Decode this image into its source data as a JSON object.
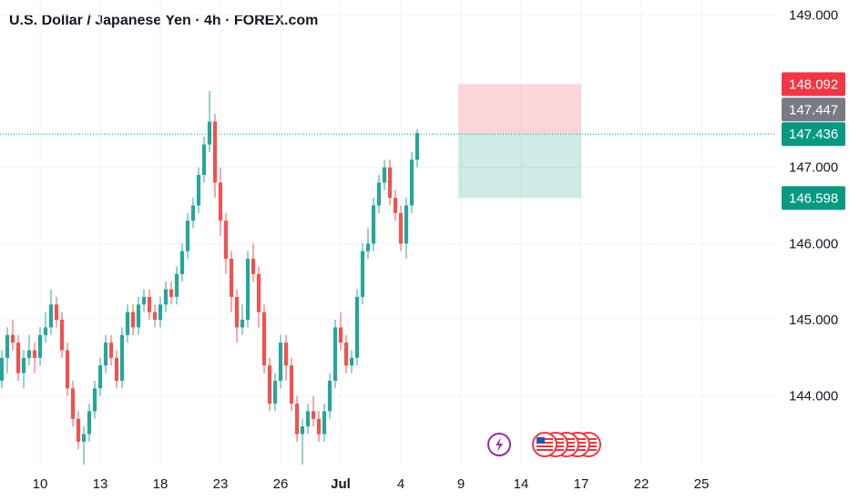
{
  "header": {
    "title": "U.S. Dollar / Japanese Yen · 4h · FOREX.com"
  },
  "chart_data": {
    "type": "candlestick",
    "title": "U.S. Dollar / Japanese Yen · 4h · FOREX.com",
    "ylim": [
      143.1,
      149.1
    ],
    "yticks": [
      144.0,
      145.0,
      146.0,
      147.0,
      149.0
    ],
    "ytick_labels": [
      "144.000",
      "145.000",
      "146.000",
      "147.000",
      "149.000"
    ],
    "xticks": [
      {
        "label": "10",
        "bar": 7
      },
      {
        "label": "13",
        "bar": 18
      },
      {
        "label": "18",
        "bar": 29
      },
      {
        "label": "23",
        "bar": 40
      },
      {
        "label": "26",
        "bar": 51
      },
      {
        "label": "Jul",
        "bar": 62
      },
      {
        "label": "4",
        "bar": 73
      },
      {
        "label": "9",
        "bar": 84
      },
      {
        "label": "14",
        "bar": 95
      },
      {
        "label": "17",
        "bar": 106
      },
      {
        "label": "22",
        "bar": 117
      },
      {
        "label": "25",
        "bar": 128
      }
    ],
    "grid": true,
    "colors": {
      "up": "#26a69a",
      "down": "#ef5350"
    },
    "candles": [
      [
        144.2,
        144.6,
        144.1,
        144.5
      ],
      [
        144.5,
        144.9,
        144.3,
        144.8
      ],
      [
        144.8,
        145.0,
        144.6,
        144.7
      ],
      [
        144.7,
        144.8,
        144.2,
        144.3
      ],
      [
        144.3,
        144.6,
        144.1,
        144.5
      ],
      [
        144.5,
        144.8,
        144.4,
        144.6
      ],
      [
        144.6,
        144.7,
        144.3,
        144.5
      ],
      [
        144.5,
        144.9,
        144.4,
        144.8
      ],
      [
        144.8,
        145.1,
        144.7,
        144.9
      ],
      [
        144.9,
        145.4,
        144.8,
        145.2
      ],
      [
        145.2,
        145.3,
        144.9,
        145.0
      ],
      [
        145.0,
        145.1,
        144.5,
        144.6
      ],
      [
        144.6,
        144.7,
        144.0,
        144.1
      ],
      [
        144.1,
        144.2,
        143.6,
        143.7
      ],
      [
        143.7,
        143.8,
        143.3,
        143.4
      ],
      [
        143.4,
        143.6,
        143.1,
        143.5
      ],
      [
        143.5,
        143.9,
        143.4,
        143.8
      ],
      [
        143.8,
        144.2,
        143.7,
        144.1
      ],
      [
        144.1,
        144.5,
        144.0,
        144.4
      ],
      [
        144.4,
        144.8,
        144.3,
        144.7
      ],
      [
        144.7,
        144.8,
        144.4,
        144.5
      ],
      [
        144.5,
        144.6,
        144.1,
        144.2
      ],
      [
        144.2,
        144.9,
        144.1,
        144.8
      ],
      [
        144.8,
        145.2,
        144.7,
        145.1
      ],
      [
        145.1,
        145.2,
        144.8,
        144.9
      ],
      [
        144.9,
        145.3,
        144.8,
        145.2
      ],
      [
        145.2,
        145.4,
        145.1,
        145.3
      ],
      [
        145.3,
        145.4,
        145.0,
        145.1
      ],
      [
        145.1,
        145.2,
        144.9,
        145.0
      ],
      [
        145.0,
        145.3,
        144.9,
        145.2
      ],
      [
        145.2,
        145.5,
        145.1,
        145.4
      ],
      [
        145.4,
        145.5,
        145.2,
        145.3
      ],
      [
        145.3,
        145.7,
        145.2,
        145.6
      ],
      [
        145.6,
        146.0,
        145.5,
        145.9
      ],
      [
        145.9,
        146.4,
        145.8,
        146.3
      ],
      [
        146.3,
        146.6,
        146.2,
        146.5
      ],
      [
        146.5,
        147.0,
        146.4,
        146.9
      ],
      [
        146.9,
        147.4,
        146.8,
        147.3
      ],
      [
        147.3,
        148.0,
        147.2,
        147.6
      ],
      [
        147.6,
        147.7,
        146.6,
        146.8
      ],
      [
        146.8,
        147.0,
        146.1,
        146.3
      ],
      [
        146.3,
        146.4,
        145.6,
        145.8
      ],
      [
        145.8,
        145.9,
        145.1,
        145.3
      ],
      [
        145.3,
        145.4,
        144.7,
        144.9
      ],
      [
        144.9,
        145.2,
        144.8,
        145.0
      ],
      [
        145.0,
        145.9,
        144.9,
        145.8
      ],
      [
        145.8,
        146.0,
        145.5,
        145.6
      ],
      [
        145.6,
        145.7,
        144.9,
        145.1
      ],
      [
        145.1,
        145.2,
        144.3,
        144.4
      ],
      [
        144.4,
        144.5,
        143.8,
        143.9
      ],
      [
        143.9,
        144.3,
        143.8,
        144.2
      ],
      [
        144.2,
        144.8,
        144.1,
        144.7
      ],
      [
        144.7,
        144.8,
        144.2,
        144.4
      ],
      [
        144.4,
        144.5,
        143.8,
        143.9
      ],
      [
        143.9,
        144.0,
        143.4,
        143.5
      ],
      [
        143.5,
        143.7,
        143.1,
        143.6
      ],
      [
        143.6,
        143.9,
        143.5,
        143.8
      ],
      [
        143.8,
        144.0,
        143.6,
        143.7
      ],
      [
        143.7,
        143.8,
        143.4,
        143.5
      ],
      [
        143.5,
        143.9,
        143.4,
        143.8
      ],
      [
        143.8,
        144.3,
        143.7,
        144.2
      ],
      [
        144.2,
        145.0,
        144.1,
        144.9
      ],
      [
        144.9,
        145.1,
        144.6,
        144.7
      ],
      [
        144.7,
        144.8,
        144.3,
        144.4
      ],
      [
        144.4,
        144.6,
        144.3,
        144.5
      ],
      [
        144.5,
        145.4,
        144.4,
        145.3
      ],
      [
        145.3,
        146.0,
        145.2,
        145.9
      ],
      [
        145.9,
        146.2,
        145.8,
        146.0
      ],
      [
        146.0,
        146.6,
        145.9,
        146.5
      ],
      [
        146.5,
        146.9,
        146.4,
        146.8
      ],
      [
        146.8,
        147.1,
        146.7,
        147.0
      ],
      [
        147.0,
        147.1,
        146.5,
        146.6
      ],
      [
        146.6,
        146.7,
        146.3,
        146.4
      ],
      [
        146.4,
        146.5,
        145.9,
        146.0
      ],
      [
        146.0,
        146.6,
        145.8,
        146.5
      ],
      [
        146.5,
        147.2,
        146.4,
        147.1
      ],
      [
        147.1,
        147.5,
        147.0,
        147.45
      ]
    ],
    "position": {
      "entry": 147.436,
      "target": 148.092,
      "stop": 146.598,
      "start_bar": 84,
      "end_bar": 106,
      "note": "top zone red, bottom zone green"
    },
    "price_tags": [
      {
        "label": "148.092",
        "value": 148.092,
        "color": "#f23645"
      },
      {
        "label": "147.447",
        "value": 147.447,
        "color": "#787b86"
      },
      {
        "label": "147.436",
        "value": 147.436,
        "color": "#089981"
      },
      {
        "label": "146.598",
        "value": 146.598,
        "color": "#089981"
      }
    ],
    "current_price_line": 147.436,
    "events": [
      {
        "type": "lightning",
        "bar": 86
      },
      {
        "type": "us-flag",
        "bar": 91,
        "count": 5
      }
    ]
  }
}
